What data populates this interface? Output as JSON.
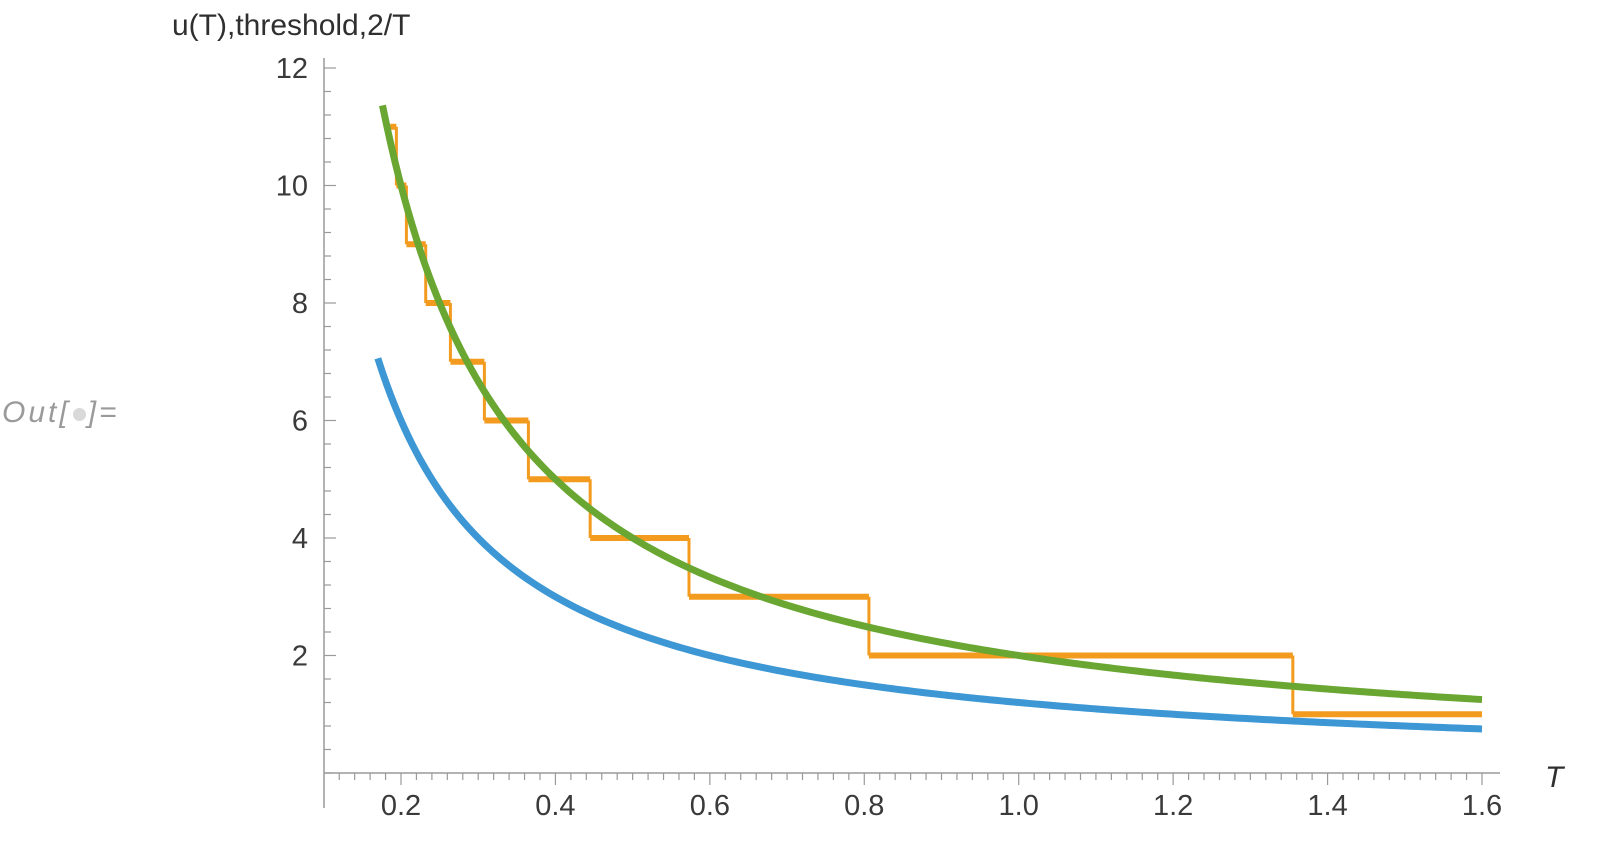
{
  "cell_label": {
    "prefix": "Out[",
    "suffix": "]="
  },
  "chart_data": {
    "type": "line",
    "title": "",
    "xlabel": "T",
    "ylabel": "u(T),threshold,2/T",
    "xlim": [
      0.12,
      1.62
    ],
    "ylim": [
      0,
      12
    ],
    "x_ticks": [
      "0.2",
      "0.4",
      "0.6",
      "0.8",
      "1.0",
      "1.2",
      "1.4",
      "1.6"
    ],
    "y_ticks": [
      "2",
      "4",
      "6",
      "8",
      "10",
      "12"
    ],
    "grid": false,
    "colors": {
      "u": "#3c97d4",
      "threshold": "#f39b1f",
      "two_over_T": "#6aa732",
      "axis": "#9a9a9a"
    },
    "series": [
      {
        "key": "u",
        "color": "#3c97d4",
        "formula": "1.2/T",
        "x_range": [
          0.17,
          1.6
        ]
      },
      {
        "key": "two_over_T",
        "color": "#6aa732",
        "formula": "2/T",
        "x_range": [
          0.176,
          1.6
        ]
      },
      {
        "key": "threshold",
        "color": "#f39b1f",
        "kind": "step",
        "steps": [
          {
            "level": 11,
            "x_start": 0.186,
            "x_end": 0.194
          },
          {
            "level": 10,
            "x_start": 0.194,
            "x_end": 0.207
          },
          {
            "level": 9,
            "x_start": 0.207,
            "x_end": 0.232
          },
          {
            "level": 8,
            "x_start": 0.232,
            "x_end": 0.264
          },
          {
            "level": 7,
            "x_start": 0.264,
            "x_end": 0.308
          },
          {
            "level": 6,
            "x_start": 0.308,
            "x_end": 0.365
          },
          {
            "level": 5,
            "x_start": 0.365,
            "x_end": 0.445
          },
          {
            "level": 4,
            "x_start": 0.445,
            "x_end": 0.573
          },
          {
            "level": 3,
            "x_start": 0.573,
            "x_end": 0.806
          },
          {
            "level": 2,
            "x_start": 0.806,
            "x_end": 1.355
          },
          {
            "level": 1,
            "x_start": 1.355,
            "x_end": 1.6
          }
        ]
      }
    ]
  }
}
